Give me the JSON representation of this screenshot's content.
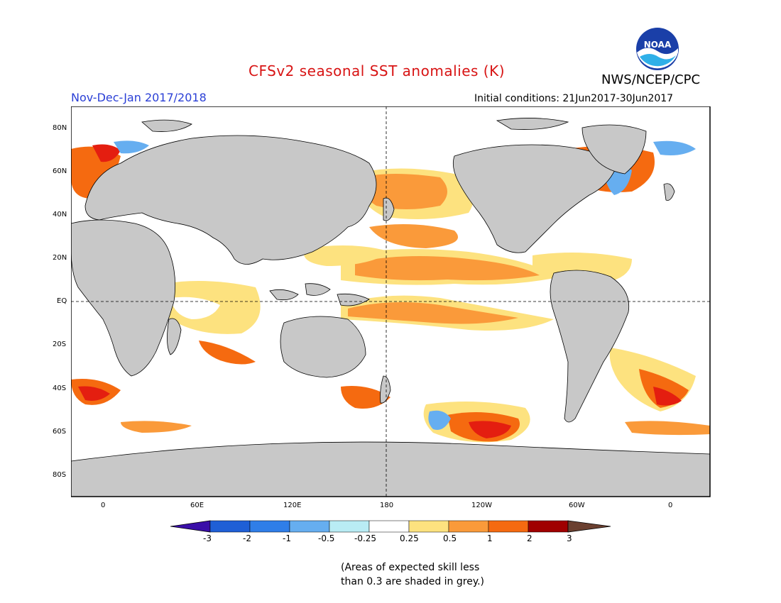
{
  "header": {
    "title": "CFSv2 seasonal SST anomalies (K)",
    "period": "Nov-Dec-Jan 2017/2018",
    "agency": "NWS/NCEP/CPC",
    "initial_conditions": "Initial conditions: 21Jun2017-30Jun2017",
    "logo_text": "NOAA"
  },
  "map": {
    "land_color": "#c8c8c8",
    "lat_labels": [
      "80N",
      "60N",
      "40N",
      "20N",
      "EQ",
      "20S",
      "40S",
      "60S",
      "80S"
    ],
    "lon_labels": [
      "0",
      "60E",
      "120E",
      "180",
      "120W",
      "60W",
      "0"
    ]
  },
  "colorbar": {
    "labels": [
      "-3",
      "-2",
      "-1",
      "-0.5",
      "-0.25",
      "0.25",
      "0.5",
      "1",
      "2",
      "3"
    ],
    "colors": [
      "#3a0fa8",
      "#1f5fd6",
      "#2f7ee8",
      "#66aef0",
      "#b9ecf4",
      "#ffffff",
      "#fde27f",
      "#fa9a3a",
      "#f56a10",
      "#e41e10",
      "#a00000",
      "#6b4030"
    ]
  },
  "footnote": {
    "line1": "(Areas of expected skill less",
    "line2": "than 0.3 are shaded in grey.)"
  }
}
